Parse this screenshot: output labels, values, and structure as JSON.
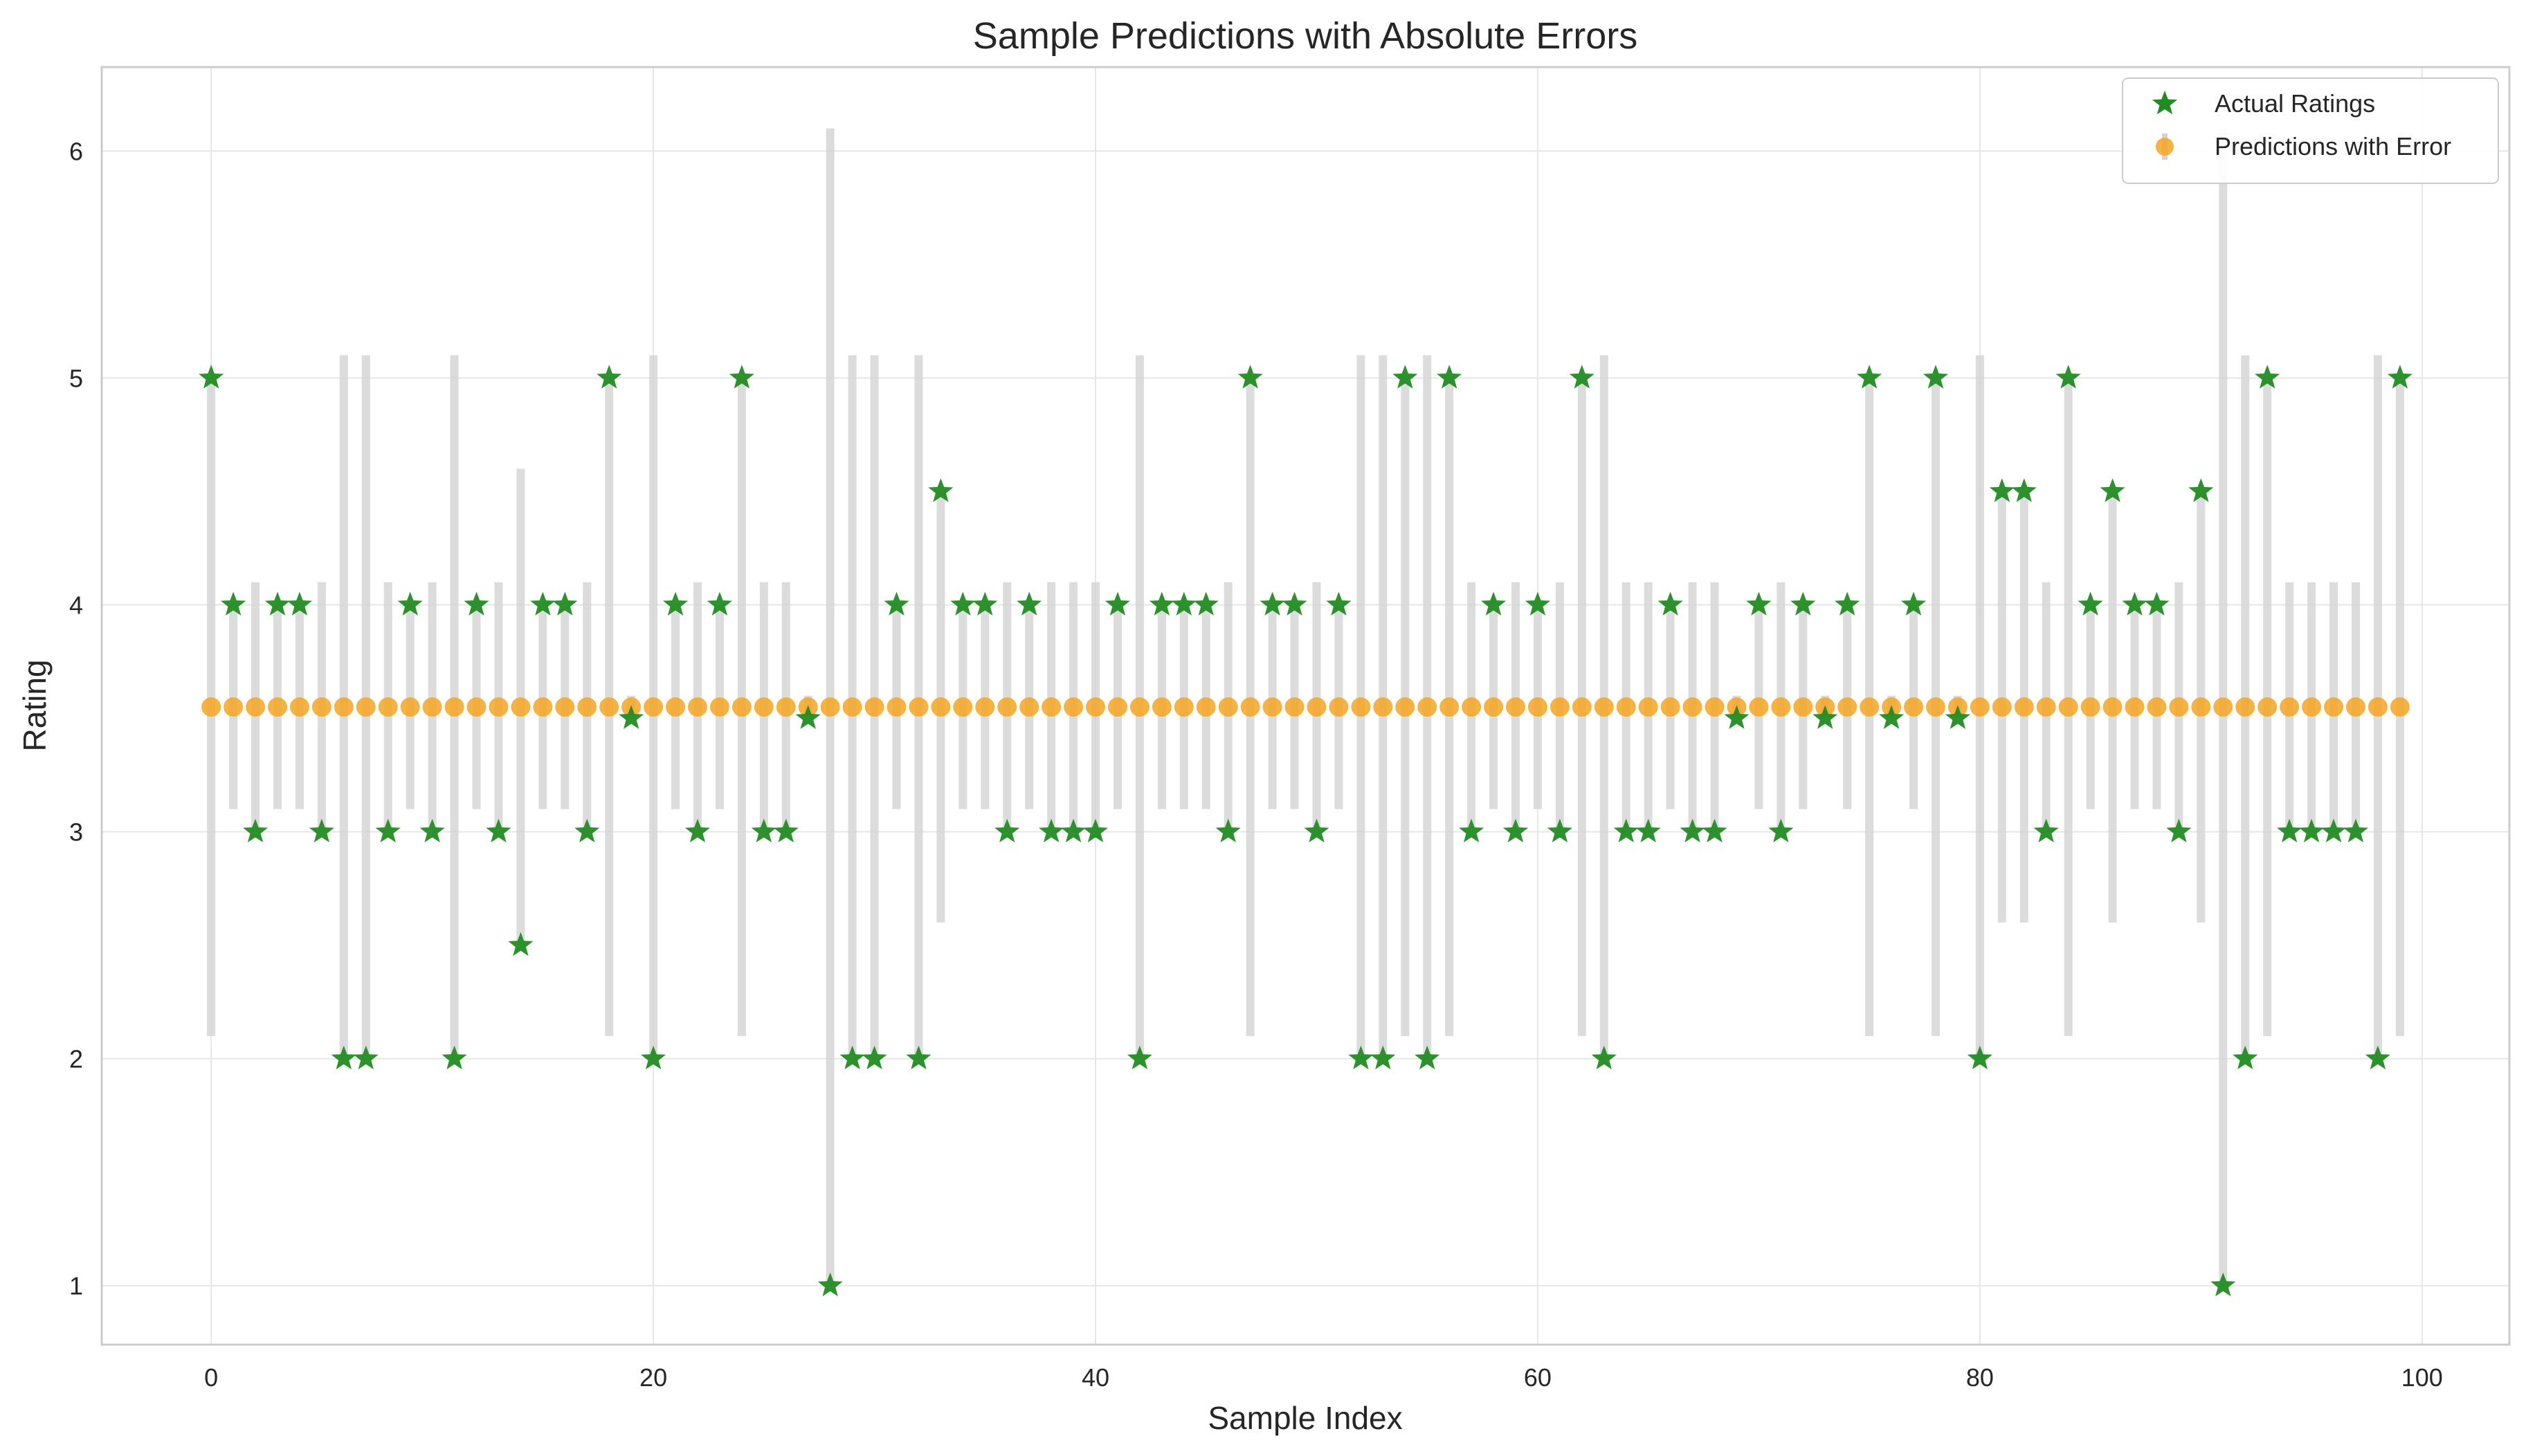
{
  "chart_data": {
    "type": "scatter",
    "title": "Sample Predictions with Absolute Errors",
    "xlabel": "Sample Index",
    "ylabel": "Rating",
    "xlim": [
      -4.95,
      103.95
    ],
    "ylim": [
      0.74,
      6.37
    ],
    "x_ticks": [
      0,
      20,
      40,
      60,
      80,
      100
    ],
    "y_ticks": [
      1,
      2,
      3,
      4,
      5,
      6
    ],
    "grid": true,
    "legend_position": "top-right",
    "colors": {
      "actual": "#228B22",
      "prediction": "#F5A623",
      "error_bar": "#D3D3D3"
    },
    "series": [
      {
        "name": "Actual Ratings",
        "marker": "star",
        "values": [
          5,
          4,
          3,
          4,
          4,
          3,
          2,
          2,
          3,
          4,
          3,
          2,
          4,
          3,
          2.5,
          4,
          4,
          3,
          5,
          3.5,
          2,
          4,
          3,
          4,
          5,
          3,
          3,
          3.5,
          1,
          2,
          2,
          4,
          2,
          4.5,
          4,
          4,
          3,
          4,
          3,
          3,
          3,
          4,
          2,
          4,
          4,
          4,
          3,
          5,
          4,
          4,
          3,
          4,
          2,
          2,
          5,
          2,
          5,
          3,
          4,
          3,
          4,
          3,
          5,
          2,
          3,
          3,
          4,
          3,
          3,
          3.5,
          4,
          3,
          4,
          3.5,
          4,
          5,
          3.5,
          4,
          5,
          3.5,
          2,
          4.5,
          4.5,
          3,
          5,
          4,
          4.5,
          4,
          4,
          3,
          4.5,
          1,
          2,
          5,
          3,
          3,
          3,
          3,
          2,
          5
        ]
      },
      {
        "name": "Predictions with Error",
        "marker": "circle",
        "prediction_value": 3.55,
        "error": "absolute difference between actual rating and prediction"
      }
    ]
  }
}
